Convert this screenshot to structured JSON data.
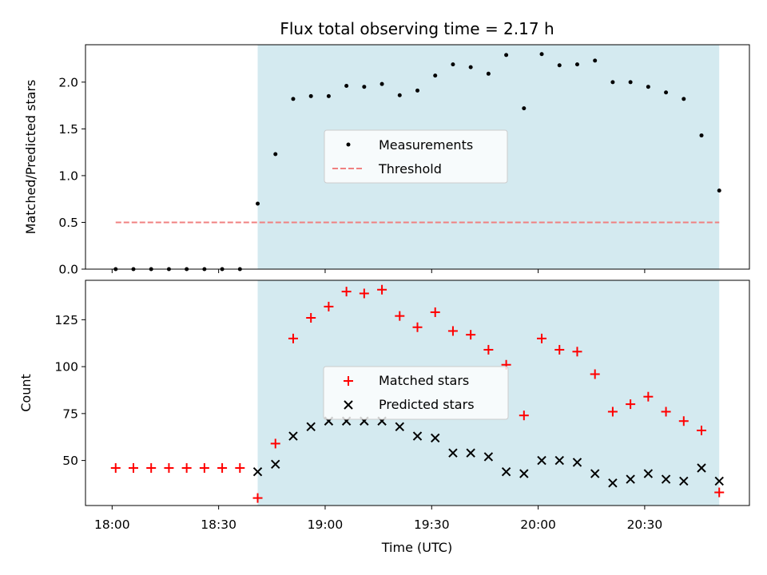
{
  "chart_data": {
    "title": "Flux total observing time = 2.17 h",
    "xlabel": "Time (UTC)",
    "x_ticks": [
      "18:00",
      "18:30",
      "19:00",
      "19:30",
      "20:00",
      "20:30"
    ],
    "x_tick_minutes": [
      0,
      30,
      60,
      90,
      120,
      150
    ],
    "xlim_minutes": [
      -7.5,
      179.5
    ],
    "shaded_span_minutes": [
      41,
      171
    ],
    "shade_color": "#d4eaf0",
    "times": [
      "18:01",
      "18:06",
      "18:11",
      "18:16",
      "18:21",
      "18:26",
      "18:31",
      "18:36",
      "18:41",
      "18:46",
      "18:51",
      "18:56",
      "19:01",
      "19:06",
      "19:11",
      "19:16",
      "19:21",
      "19:26",
      "19:31",
      "19:36",
      "19:41",
      "19:46",
      "19:51",
      "19:56",
      "20:01",
      "20:06",
      "20:11",
      "20:16",
      "20:21",
      "20:26",
      "20:31",
      "20:36",
      "20:41",
      "20:46",
      "20:51"
    ],
    "x_minutes": [
      1,
      6,
      11,
      16,
      21,
      26,
      31,
      36,
      41,
      46,
      51,
      56,
      61,
      66,
      71,
      76,
      81,
      86,
      91,
      96,
      101,
      106,
      111,
      116,
      121,
      126,
      131,
      136,
      141,
      146,
      151,
      156,
      161,
      166,
      171
    ],
    "panels": [
      {
        "type": "scatter",
        "ylabel": "Matched/Predicted stars",
        "ylim": [
          0,
          2.4
        ],
        "yticks": [
          0.0,
          0.5,
          1.0,
          1.5,
          2.0
        ],
        "ytick_labels": [
          "0.0",
          "0.5",
          "1.0",
          "1.5",
          "2.0"
        ],
        "series": [
          {
            "name": "Measurements",
            "marker": "dot",
            "color": "#000000",
            "values": [
              0,
              0,
              0,
              0,
              0,
              0,
              0,
              0,
              0.7,
              1.23,
              1.82,
              1.85,
              1.85,
              1.96,
              1.95,
              1.98,
              1.86,
              1.91,
              2.07,
              2.19,
              2.16,
              2.09,
              2.29,
              1.72,
              2.3,
              2.18,
              2.19,
              2.23,
              2.0,
              2.0,
              1.95,
              1.89,
              1.82,
              1.43,
              0.84
            ]
          }
        ],
        "threshold": {
          "name": "Threshold",
          "value": 0.5,
          "x_range_minutes": [
            1,
            171
          ],
          "color": "#f08080"
        },
        "legend_position": "center"
      },
      {
        "type": "scatter",
        "ylabel": "Count",
        "ylim": [
          26,
          146
        ],
        "yticks": [
          50,
          75,
          100,
          125
        ],
        "ytick_labels": [
          "50",
          "75",
          "100",
          "125"
        ],
        "series": [
          {
            "name": "Matched stars",
            "marker": "plus",
            "color": "#ff0000",
            "values": [
              46,
              46,
              46,
              46,
              46,
              46,
              46,
              46,
              30,
              59,
              115,
              126,
              132,
              140,
              139,
              141,
              127,
              121,
              129,
              119,
              117,
              109,
              101,
              74,
              115,
              109,
              108,
              96,
              76,
              80,
              84,
              76,
              71,
              66,
              33
            ]
          },
          {
            "name": "Predicted stars",
            "marker": "x",
            "color": "#000000",
            "values": [
              null,
              null,
              null,
              null,
              null,
              null,
              null,
              null,
              44,
              48,
              63,
              68,
              71,
              71,
              71,
              71,
              68,
              63,
              62,
              54,
              54,
              52,
              44,
              43,
              50,
              50,
              49,
              43,
              38,
              40,
              43,
              40,
              39,
              46,
              39
            ]
          }
        ],
        "legend_position": "center"
      }
    ]
  }
}
